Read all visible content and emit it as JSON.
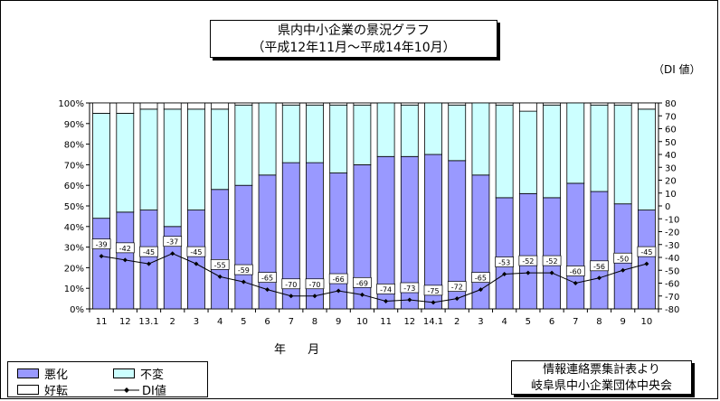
{
  "title": {
    "line1": "県内中小企業の景況グラフ",
    "line2": "（平成12年11月～平成14年10月）"
  },
  "unit_label": "（DI 値）",
  "xaxis_title": "年 月",
  "legend": {
    "deteriorate": "悪化",
    "unchanged": "不変",
    "improve": "好転",
    "di": "DI値"
  },
  "source": {
    "line1": "情報連絡票集計表より",
    "line2": "岐阜県中小企業団体中央会"
  },
  "colors": {
    "deteriorate": "#9999ff",
    "unchanged": "#ccffff",
    "improve": "#ffffff",
    "di_line": "#000000"
  },
  "chart_data": {
    "type": "bar",
    "stacked": true,
    "categories": [
      "11",
      "12",
      "13.1",
      "2",
      "3",
      "4",
      "5",
      "6",
      "7",
      "8",
      "9",
      "10",
      "11",
      "12",
      "14.1",
      "2",
      "3",
      "4",
      "5",
      "6",
      "7",
      "8",
      "9",
      "10"
    ],
    "series": [
      {
        "name": "悪化",
        "values": [
          44,
          47,
          48,
          40,
          48,
          58,
          60,
          65,
          71,
          71,
          66,
          70,
          74,
          74,
          75,
          72,
          65,
          54,
          56,
          54,
          61,
          57,
          51,
          48
        ]
      },
      {
        "name": "不変",
        "values": [
          51,
          48,
          49,
          57,
          49,
          39,
          39,
          35,
          28,
          28,
          33,
          29,
          26,
          25,
          25,
          27,
          35,
          45,
          40,
          45,
          39,
          42,
          48,
          49
        ]
      },
      {
        "name": "好転",
        "values": [
          5,
          5,
          3,
          3,
          3,
          3,
          1,
          0,
          1,
          1,
          1,
          1,
          0,
          1,
          0,
          1,
          0,
          1,
          4,
          1,
          0,
          1,
          1,
          3
        ]
      },
      {
        "name": "DI値",
        "axis": "right",
        "values": [
          -39,
          -42,
          -45,
          -37,
          -45,
          -55,
          -59,
          -65,
          -70,
          -70,
          -66,
          -69,
          -74,
          -73,
          -75,
          -72,
          -65,
          -53,
          -52,
          -52,
          -60,
          -56,
          -50,
          -45
        ]
      }
    ],
    "ylim_left": [
      0,
      100
    ],
    "ylim_right": [
      -80,
      80
    ],
    "yticks_left": [
      "0%",
      "10%",
      "20%",
      "30%",
      "40%",
      "50%",
      "60%",
      "70%",
      "80%",
      "90%",
      "100%"
    ],
    "yticks_right": [
      "-80",
      "-70",
      "-60",
      "-50",
      "-40",
      "-30",
      "-20",
      "-10",
      "0",
      "10",
      "20",
      "30",
      "40",
      "50",
      "60",
      "70",
      "80"
    ],
    "di_labels": [
      "-39",
      "-42",
      "-45",
      "-37",
      "-45",
      "-55",
      "-59",
      "-65",
      "-70",
      "-70",
      "-66",
      "-69",
      "-74",
      "-73",
      "-75",
      "-72",
      "-65",
      "-53",
      "-52",
      "-52",
      "-60",
      "-56",
      "-50",
      "-45"
    ],
    "xlabel": "年 月",
    "ylabel": "",
    "grid": false,
    "legend_position": "bottom-left"
  }
}
